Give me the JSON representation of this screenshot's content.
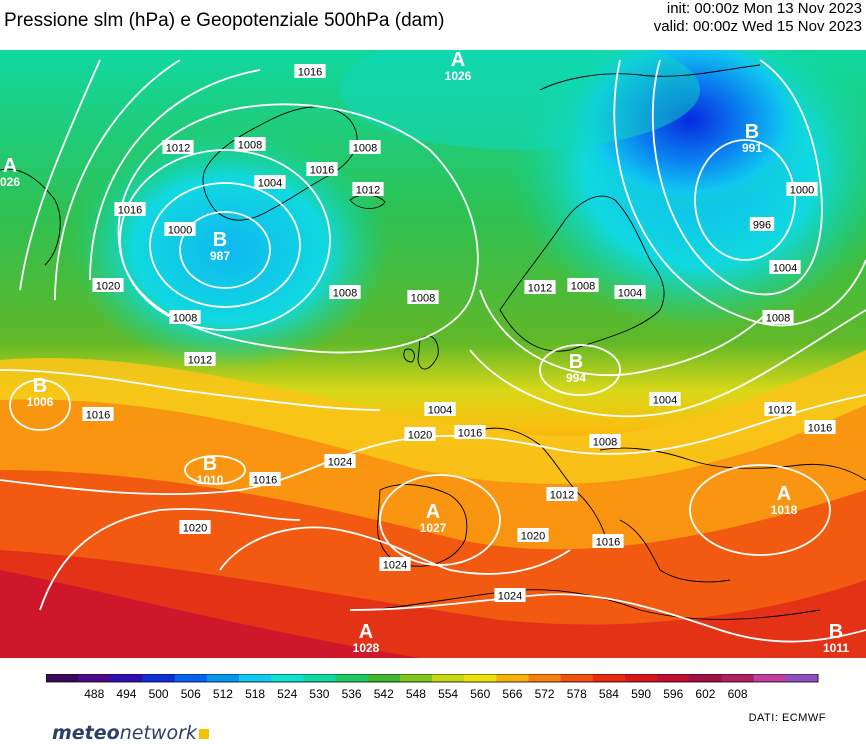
{
  "header": {
    "title": "Pressione slm (hPa) e Geopotenziale 500hPa (dam)",
    "init": "init: 00:00z Mon 13 Nov 2023",
    "valid": "valid: 00:00z Wed 15 Nov 2023"
  },
  "map": {
    "pressure_labels": [
      "1016",
      "1012",
      "1008",
      "1004",
      "1000",
      "1016",
      "1020",
      "1008",
      "1012",
      "1016",
      "1016",
      "1012",
      "1004",
      "1008",
      "1008",
      "1008",
      "1012",
      "1008",
      "1004",
      "996",
      "1000",
      "1004",
      "1008",
      "1012",
      "1016",
      "1020",
      "1016",
      "1004",
      "1008",
      "1024",
      "1020",
      "1024",
      "1024",
      "1012",
      "1020",
      "1016",
      "1016"
    ],
    "centers": [
      {
        "symbol": "A",
        "value": "1026"
      },
      {
        "symbol": "A",
        "value": "026"
      },
      {
        "symbol": "B",
        "value": "991"
      },
      {
        "symbol": "B",
        "value": "987"
      },
      {
        "symbol": "B",
        "value": "1006"
      },
      {
        "symbol": "B",
        "value": "994"
      },
      {
        "symbol": "B",
        "value": "1010"
      },
      {
        "symbol": "A",
        "value": "1027"
      },
      {
        "symbol": "A",
        "value": "1018"
      },
      {
        "symbol": "A",
        "value": "1028"
      },
      {
        "symbol": "B",
        "value": "1011"
      }
    ]
  },
  "colorbar": {
    "ticks": [
      "488",
      "494",
      "500",
      "506",
      "512",
      "518",
      "524",
      "530",
      "536",
      "542",
      "548",
      "554",
      "560",
      "566",
      "572",
      "578",
      "584",
      "590",
      "596",
      "602",
      "608"
    ],
    "colors": [
      "#3a0a5a",
      "#4a0a8a",
      "#3010b0",
      "#1030d8",
      "#0a60f0",
      "#0a96f0",
      "#10c8f0",
      "#10e0d0",
      "#10d8a0",
      "#20c860",
      "#40b830",
      "#80c820",
      "#c8d818",
      "#f0e010",
      "#f8b010",
      "#f88010",
      "#f05010",
      "#e82a10",
      "#d81818",
      "#c01030",
      "#a01040",
      "#b02060",
      "#c040a0",
      "#9050c0"
    ],
    "units": "dam"
  },
  "footer": {
    "logo_bold": "meteo",
    "logo_regular": "network",
    "credit": "DATI:  ECMWF"
  }
}
